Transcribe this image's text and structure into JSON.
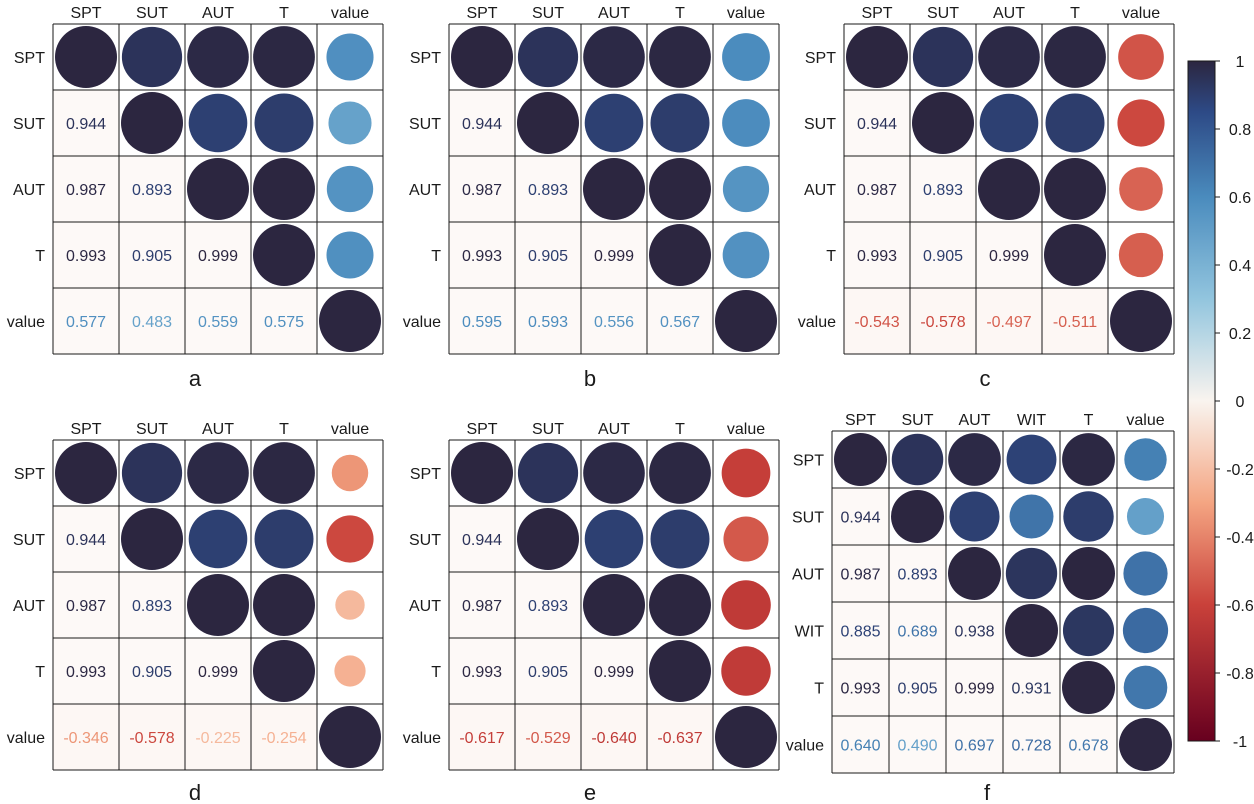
{
  "chart_data": {
    "type": "correlogram",
    "color_scale": {
      "min": -1,
      "max": 1,
      "ticks": [
        "1",
        "0.8",
        "0.6",
        "0.4",
        "0.2",
        "0",
        "-0.2",
        "-0.4",
        "-0.6",
        "-0.8",
        "-1"
      ],
      "stops": [
        {
          "v": -1.0,
          "color": "#67001f"
        },
        {
          "v": -0.6,
          "color": "#c9413a"
        },
        {
          "v": -0.3,
          "color": "#f4a582"
        },
        {
          "v": 0.0,
          "color": "#f9f4ef"
        },
        {
          "v": 0.3,
          "color": "#92c5de"
        },
        {
          "v": 0.6,
          "color": "#4a8bbd"
        },
        {
          "v": 0.85,
          "color": "#2d4a86"
        },
        {
          "v": 1.0,
          "color": "#2c2640"
        }
      ]
    },
    "panels": [
      {
        "label": "a",
        "variables": [
          "SPT",
          "SUT",
          "AUT",
          "T",
          "value"
        ],
        "matrix": [
          [
            1,
            0.944,
            0.987,
            0.993,
            0.577
          ],
          [
            0.944,
            1,
            0.893,
            0.905,
            0.483
          ],
          [
            0.987,
            0.893,
            1,
            0.999,
            0.559
          ],
          [
            0.993,
            0.905,
            0.999,
            1,
            0.575
          ],
          [
            0.577,
            0.483,
            0.559,
            0.575,
            1
          ]
        ],
        "lower_labels": [
          [
            "0.944"
          ],
          [
            "0.987",
            "0.893"
          ],
          [
            "0.993",
            "0.905",
            "0.999"
          ],
          [
            "0.577",
            "0.483",
            "0.559",
            "0.575"
          ]
        ]
      },
      {
        "label": "b",
        "variables": [
          "SPT",
          "SUT",
          "AUT",
          "T",
          "value"
        ],
        "matrix": [
          [
            1,
            0.944,
            0.987,
            0.993,
            0.595
          ],
          [
            0.944,
            1,
            0.893,
            0.905,
            0.593
          ],
          [
            0.987,
            0.893,
            1,
            0.999,
            0.556
          ],
          [
            0.993,
            0.905,
            0.999,
            1,
            0.567
          ],
          [
            0.595,
            0.593,
            0.556,
            0.567,
            1
          ]
        ],
        "lower_labels": [
          [
            "0.944"
          ],
          [
            "0.987",
            "0.893"
          ],
          [
            "0.993",
            "0.905",
            "0.999"
          ],
          [
            "0.595",
            "0.593",
            "0.556",
            "0.567"
          ]
        ]
      },
      {
        "label": "c",
        "variables": [
          "SPT",
          "SUT",
          "AUT",
          "T",
          "value"
        ],
        "matrix": [
          [
            1,
            0.944,
            0.987,
            0.993,
            -0.543
          ],
          [
            0.944,
            1,
            0.893,
            0.905,
            -0.578
          ],
          [
            0.987,
            0.893,
            1,
            0.999,
            -0.497
          ],
          [
            0.993,
            0.905,
            0.999,
            1,
            -0.511
          ],
          [
            -0.543,
            -0.578,
            -0.497,
            -0.511,
            1
          ]
        ],
        "lower_labels": [
          [
            "0.944"
          ],
          [
            "0.987",
            "0.893"
          ],
          [
            "0.993",
            "0.905",
            "0.999"
          ],
          [
            "-0.543",
            "-0.578",
            "-0.497",
            "-0.511"
          ]
        ]
      },
      {
        "label": "d",
        "variables": [
          "SPT",
          "SUT",
          "AUT",
          "T",
          "value"
        ],
        "matrix": [
          [
            1,
            0.944,
            0.987,
            0.993,
            -0.346
          ],
          [
            0.944,
            1,
            0.893,
            0.905,
            -0.578
          ],
          [
            0.987,
            0.893,
            1,
            0.999,
            -0.225
          ],
          [
            0.993,
            0.905,
            0.999,
            1,
            -0.254
          ],
          [
            -0.346,
            -0.578,
            -0.225,
            -0.254,
            1
          ]
        ],
        "lower_labels": [
          [
            "0.944"
          ],
          [
            "0.987",
            "0.893"
          ],
          [
            "0.993",
            "0.905",
            "0.999"
          ],
          [
            "-0.346",
            "-0.578",
            "-0.225",
            "-0.254"
          ]
        ]
      },
      {
        "label": "e",
        "variables": [
          "SPT",
          "SUT",
          "AUT",
          "T",
          "value"
        ],
        "matrix": [
          [
            1,
            0.944,
            0.987,
            0.993,
            -0.617
          ],
          [
            0.944,
            1,
            0.893,
            0.905,
            -0.529
          ],
          [
            0.987,
            0.893,
            1,
            0.999,
            -0.64
          ],
          [
            0.993,
            0.905,
            0.999,
            1,
            -0.637
          ],
          [
            -0.617,
            -0.529,
            -0.64,
            -0.637,
            1
          ]
        ],
        "lower_labels": [
          [
            "0.944"
          ],
          [
            "0.987",
            "0.893"
          ],
          [
            "0.993",
            "0.905",
            "0.999"
          ],
          [
            "-0.617",
            "-0.529",
            "-0.640",
            "-0.637"
          ]
        ]
      },
      {
        "label": "f",
        "variables": [
          "SPT",
          "SUT",
          "AUT",
          "WIT",
          "T",
          "value"
        ],
        "matrix": [
          [
            1,
            0.944,
            0.987,
            0.885,
            0.993,
            0.64
          ],
          [
            0.944,
            1,
            0.893,
            0.689,
            0.905,
            0.49
          ],
          [
            0.987,
            0.893,
            1,
            0.938,
            0.999,
            0.697
          ],
          [
            0.885,
            0.689,
            0.938,
            1,
            0.931,
            0.728
          ],
          [
            0.993,
            0.905,
            0.999,
            0.931,
            1,
            0.678
          ],
          [
            0.64,
            0.49,
            0.697,
            0.728,
            0.678,
            1
          ]
        ],
        "lower_labels": [
          [
            "0.944"
          ],
          [
            "0.987",
            "0.893"
          ],
          [
            "0.885",
            "0.689",
            "0.938"
          ],
          [
            "0.993",
            "0.905",
            "0.999",
            "0.931"
          ],
          [
            "0.640",
            "0.490",
            "0.697",
            "0.728",
            "0.678"
          ]
        ]
      }
    ]
  }
}
